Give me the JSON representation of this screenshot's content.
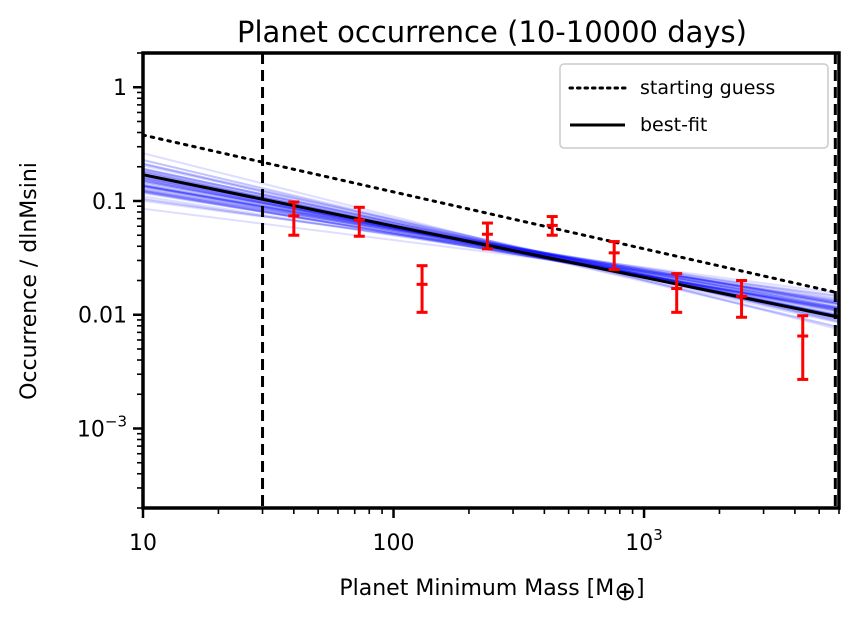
{
  "chart_data": {
    "type": "line",
    "title": "Planet occurrence (10-10000 days)",
    "xlabel": "Planet Minimum Mass [M",
    "xlabel_symbol": "⊕",
    "xlabel_suffix": "]",
    "ylabel": "Occurrence / dlnMsini",
    "xscale": "log",
    "yscale": "log",
    "xlim": [
      10,
      6000
    ],
    "ylim": [
      0.0002,
      2
    ],
    "x_ticks": [
      {
        "value": 10,
        "label": "10"
      },
      {
        "value": 100,
        "label": "100"
      },
      {
        "value": 1000,
        "label": "10",
        "exp": "3"
      }
    ],
    "y_ticks": [
      {
        "value": 1,
        "label": "1"
      },
      {
        "value": 0.1,
        "label": "0.1"
      },
      {
        "value": 0.01,
        "label": "0.01"
      },
      {
        "value": 0.001,
        "label": "10",
        "exp": "−3"
      }
    ],
    "vlines": [
      {
        "x": 30,
        "style": "dashed",
        "color": "#000000"
      },
      {
        "x": 5800,
        "style": "dashed",
        "color": "#000000"
      }
    ],
    "series": [
      {
        "name": "starting guess",
        "style": "dotted",
        "color": "#000000",
        "x": [
          10,
          6000
        ],
        "y": [
          0.38,
          0.0155
        ]
      },
      {
        "name": "best-fit",
        "style": "solid",
        "color": "#000000",
        "x": [
          10,
          6000
        ],
        "y": [
          0.17,
          0.0095
        ]
      }
    ],
    "posterior_samples": {
      "color": "#0000ff",
      "opacity": 0.13,
      "count": 60,
      "pivot_x": 400,
      "pivot_y": 0.033,
      "y_at_10_range": [
        0.08,
        0.32
      ]
    },
    "data_points": {
      "color": "#ff0000",
      "points": [
        {
          "x": 40,
          "y": 0.074,
          "ylo": 0.05,
          "yhi": 0.098
        },
        {
          "x": 73,
          "y": 0.068,
          "ylo": 0.049,
          "yhi": 0.088
        },
        {
          "x": 130,
          "y": 0.0185,
          "ylo": 0.0105,
          "yhi": 0.027
        },
        {
          "x": 237,
          "y": 0.051,
          "ylo": 0.038,
          "yhi": 0.064
        },
        {
          "x": 430,
          "y": 0.061,
          "ylo": 0.05,
          "yhi": 0.073
        },
        {
          "x": 760,
          "y": 0.035,
          "ylo": 0.025,
          "yhi": 0.044
        },
        {
          "x": 1350,
          "y": 0.017,
          "ylo": 0.0105,
          "yhi": 0.023
        },
        {
          "x": 2450,
          "y": 0.0145,
          "ylo": 0.0095,
          "yhi": 0.02
        },
        {
          "x": 4300,
          "y": 0.0065,
          "ylo": 0.0027,
          "yhi": 0.0098
        }
      ]
    },
    "legend": {
      "position": "top-right",
      "entries": [
        "starting guess",
        "best-fit"
      ]
    }
  }
}
